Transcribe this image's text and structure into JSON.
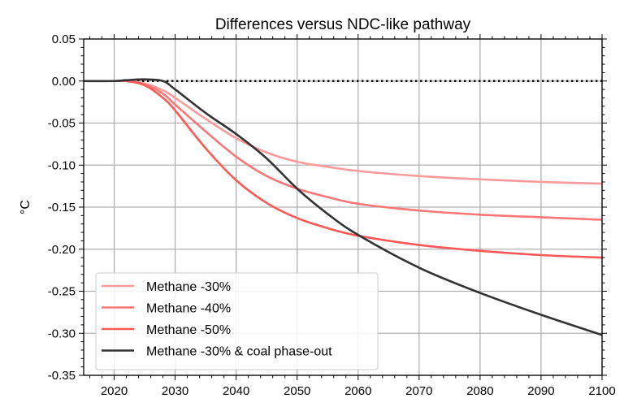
{
  "chart_data": {
    "type": "line",
    "title": "Differences versus NDC-like pathway",
    "xlabel": "",
    "ylabel": "°C",
    "xlim": [
      2015,
      2100
    ],
    "ylim": [
      -0.35,
      0.05
    ],
    "xticks": [
      2020,
      2030,
      2040,
      2050,
      2060,
      2070,
      2080,
      2090,
      2100
    ],
    "yticks": [
      0.05,
      0.0,
      -0.05,
      -0.1,
      -0.15,
      -0.2,
      -0.25,
      -0.3,
      -0.35
    ],
    "ytick_labels": [
      "0.05",
      "0.00",
      "-0.05",
      "-0.10",
      "-0.15",
      "-0.20",
      "-0.25",
      "-0.30",
      "-0.35"
    ],
    "grid": true,
    "legend_position": "lower-left",
    "reference_line": {
      "y": 0,
      "style": "dotted",
      "color": "#000000"
    },
    "x": [
      2015,
      2020,
      2022,
      2025,
      2028,
      2030,
      2035,
      2040,
      2045,
      2050,
      2055,
      2060,
      2070,
      2080,
      2090,
      2100
    ],
    "series": [
      {
        "name": "Methane -30%",
        "color": "#ff9a9a",
        "values": [
          0,
          0,
          0,
          -0.003,
          -0.011,
          -0.02,
          -0.045,
          -0.068,
          -0.085,
          -0.096,
          -0.102,
          -0.107,
          -0.113,
          -0.117,
          -0.12,
          -0.122
        ]
      },
      {
        "name": "Methane -40%",
        "color": "#ff7676",
        "values": [
          0,
          0,
          0,
          -0.004,
          -0.015,
          -0.028,
          -0.06,
          -0.09,
          -0.113,
          -0.128,
          -0.138,
          -0.146,
          -0.154,
          -0.159,
          -0.162,
          -0.165
        ]
      },
      {
        "name": "Methane -50%",
        "color": "#ff5858",
        "values": [
          0,
          0,
          0,
          -0.005,
          -0.02,
          -0.035,
          -0.08,
          -0.118,
          -0.145,
          -0.163,
          -0.175,
          -0.184,
          -0.195,
          -0.202,
          -0.207,
          -0.21
        ]
      },
      {
        "name": "Methane -30% & coal phase-out",
        "color": "#333333",
        "values": [
          0,
          0,
          0.001,
          0.002,
          0,
          -0.01,
          -0.038,
          -0.063,
          -0.092,
          -0.128,
          -0.158,
          -0.183,
          -0.222,
          -0.252,
          -0.278,
          -0.302
        ]
      }
    ]
  }
}
